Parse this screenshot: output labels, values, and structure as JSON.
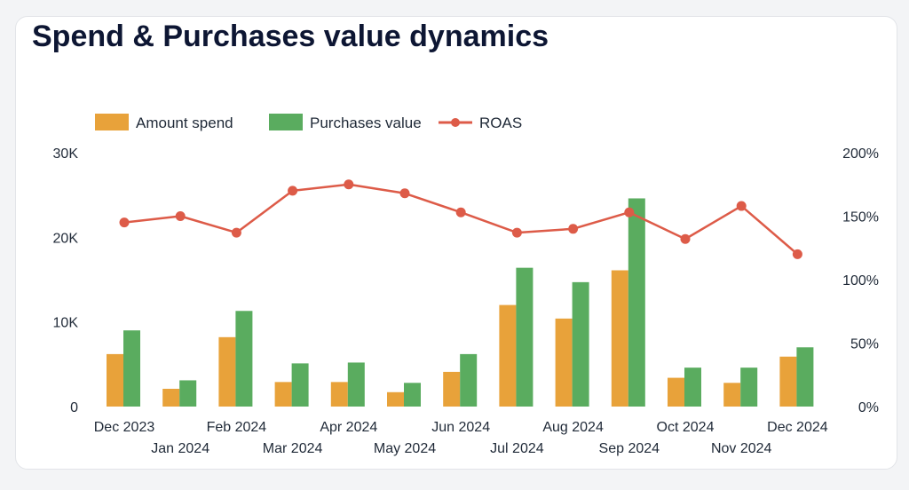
{
  "title": "Spend & Purchases value dynamics",
  "chart_data": {
    "type": "bar",
    "categories": [
      "Dec 2023",
      "Jan 2024",
      "Feb 2024",
      "Mar 2024",
      "Apr 2024",
      "May 2024",
      "Jun 2024",
      "Jul 2024",
      "Aug 2024",
      "Sep 2024",
      "Oct 2024",
      "Nov 2024",
      "Dec 2024"
    ],
    "series": [
      {
        "name": "Amount spend",
        "type": "bar",
        "axis": "left",
        "color": "#e8a23a",
        "values": [
          6200,
          2100,
          8200,
          2900,
          2900,
          1700,
          4100,
          12000,
          10400,
          16100,
          3400,
          2800,
          5900
        ]
      },
      {
        "name": "Purchases value",
        "type": "bar",
        "axis": "left",
        "color": "#5aac5f",
        "values": [
          9000,
          3100,
          11300,
          5100,
          5200,
          2800,
          6200,
          16400,
          14700,
          24600,
          4600,
          4600,
          7000
        ]
      },
      {
        "name": "ROAS",
        "type": "line",
        "axis": "right",
        "color": "#dd5b48",
        "values": [
          145,
          150,
          137,
          170,
          175,
          168,
          153,
          137,
          140,
          153,
          132,
          158,
          120
        ]
      }
    ],
    "y_left": {
      "ticks": [
        "0",
        "10K",
        "20K",
        "30K"
      ],
      "range": [
        0,
        30000
      ]
    },
    "y_right": {
      "ticks": [
        "0%",
        "50%",
        "100%",
        "150%",
        "200%"
      ],
      "range": [
        0,
        200
      ]
    },
    "legend": {
      "position": "top-left"
    },
    "grid": false
  }
}
